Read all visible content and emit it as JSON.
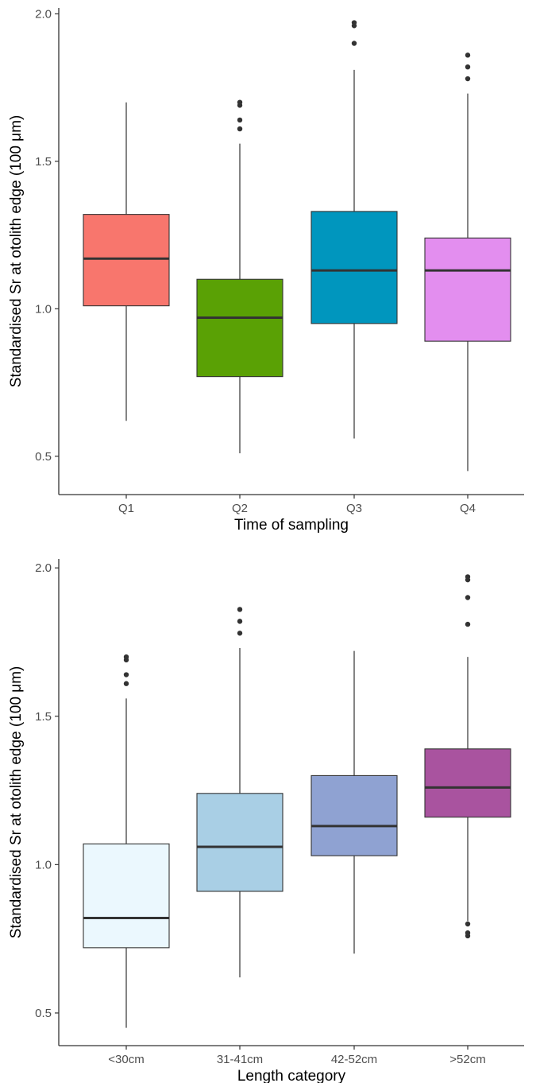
{
  "chart_data": [
    {
      "type": "box",
      "xlabel": "Time of sampling",
      "ylabel": "Standardised Sr at otolith edge (100 μm)",
      "ylim": [
        0.37,
        2.02
      ],
      "yticks": [
        0.5,
        1.0,
        1.5,
        2.0
      ],
      "ytick_labels": [
        "0.5",
        "1.0",
        "1.5",
        "2.0"
      ],
      "grid": false,
      "categories": [
        "Q1",
        "Q2",
        "Q3",
        "Q4"
      ],
      "boxes": [
        {
          "category": "Q1",
          "color": "#F8766D",
          "whisker_low": 0.62,
          "q1": 1.01,
          "median": 1.17,
          "q3": 1.32,
          "whisker_high": 1.7,
          "outliers": []
        },
        {
          "category": "Q2",
          "color": "#5AA105",
          "whisker_low": 0.51,
          "q1": 0.77,
          "median": 0.97,
          "q3": 1.1,
          "whisker_high": 1.56,
          "outliers": [
            1.61,
            1.64,
            1.69,
            1.7
          ]
        },
        {
          "category": "Q3",
          "color": "#0096BE",
          "whisker_low": 0.56,
          "q1": 0.95,
          "median": 1.13,
          "q3": 1.33,
          "whisker_high": 1.81,
          "outliers": [
            1.9,
            1.96,
            1.97
          ]
        },
        {
          "category": "Q4",
          "color": "#E38EEF",
          "whisker_low": 0.45,
          "q1": 0.89,
          "median": 1.13,
          "q3": 1.24,
          "whisker_high": 1.73,
          "outliers": [
            1.78,
            1.82,
            1.86
          ]
        }
      ]
    },
    {
      "type": "box",
      "xlabel": "Length category",
      "ylabel": "Standardised Sr at otolith edge (100 μm)",
      "ylim": [
        0.39,
        2.03
      ],
      "yticks": [
        0.5,
        1.0,
        1.5,
        2.0
      ],
      "ytick_labels": [
        "0.5",
        "1.0",
        "1.5",
        "2.0"
      ],
      "grid": false,
      "categories": [
        "<30cm",
        "31-41cm",
        "42-52cm",
        ">52cm"
      ],
      "boxes": [
        {
          "category": "<30cm",
          "color": "#EBF8FE",
          "whisker_low": 0.45,
          "q1": 0.72,
          "median": 0.82,
          "q3": 1.07,
          "whisker_high": 1.56,
          "outliers": [
            1.61,
            1.64,
            1.69,
            1.7
          ]
        },
        {
          "category": "31-41cm",
          "color": "#A9CFE5",
          "whisker_low": 0.62,
          "q1": 0.91,
          "median": 1.06,
          "q3": 1.24,
          "whisker_high": 1.73,
          "outliers": [
            1.78,
            1.82,
            1.86
          ]
        },
        {
          "category": "42-52cm",
          "color": "#8FA2D2",
          "whisker_low": 0.7,
          "q1": 1.03,
          "median": 1.13,
          "q3": 1.3,
          "whisker_high": 1.72,
          "outliers": []
        },
        {
          "category": ">52cm",
          "color": "#A9539F",
          "whisker_low": 0.81,
          "q1": 1.16,
          "median": 1.26,
          "q3": 1.39,
          "whisker_high": 1.7,
          "outliers": [
            0.76,
            0.77,
            0.8,
            1.81,
            1.9,
            1.96,
            1.97
          ]
        }
      ]
    }
  ]
}
